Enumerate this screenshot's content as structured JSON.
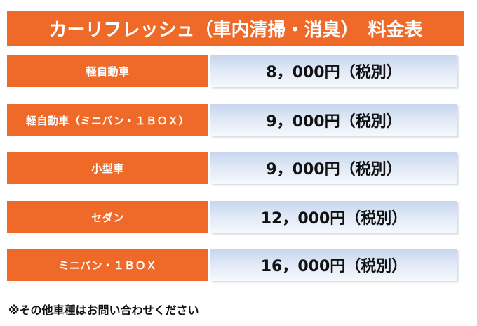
{
  "title": "カーリフレッシュ（車内清掃・消臭）　料金表",
  "rows": [
    {
      "category": "軽自動車",
      "price": "8，000円（税別）"
    },
    {
      "category": "軽自動車（ミニバン・１ＢＯＸ）",
      "price": "9，000円（税別）"
    },
    {
      "category": "小型車",
      "price": "9，000円（税別）"
    },
    {
      "category": "セダン",
      "price": "12，000円（税別）"
    },
    {
      "category": "ミニバン・１ＢＯＸ",
      "price": "16，000円（税別）"
    }
  ],
  "note": "※その他車種はお問い合わせください",
  "colors": {
    "accent_orange": "#ef6a28",
    "price_bg_top": "#c5d6ee",
    "price_bg_bottom": "#f6f9fd"
  }
}
